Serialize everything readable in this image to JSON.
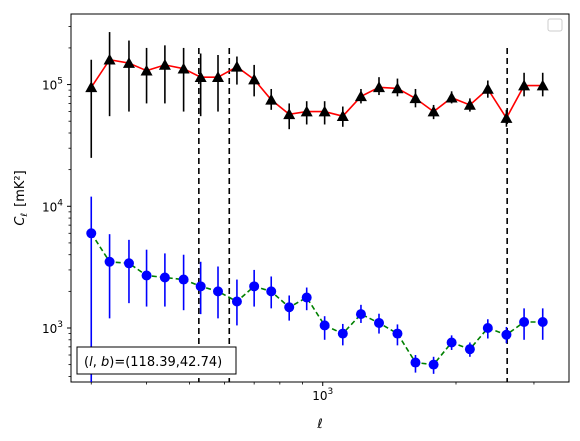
{
  "chart_data": {
    "type": "scatter",
    "title": "",
    "xlabel": "ℓ",
    "ylabel_main": "C",
    "ylabel_sub": "ℓ",
    "ylabel_unit": "[mK²]",
    "xscale": "log",
    "yscale": "log",
    "xlim": [
      270,
      3600
    ],
    "ylim": [
      360,
      380000
    ],
    "x_ticks": [
      {
        "value": 1000,
        "base": "10",
        "exp": "3"
      }
    ],
    "y_ticks": [
      {
        "value": 1000,
        "base": "10",
        "exp": "3"
      },
      {
        "value": 10000,
        "base": "10",
        "exp": "4"
      },
      {
        "value": 100000,
        "base": "10",
        "exp": "5"
      }
    ],
    "vlines": [
      525,
      615,
      2610
    ],
    "annotation": "(l, b)=(118.39,42.74)",
    "annotation_parts": {
      "l": "l",
      "b": "b",
      "values": "=(118.39,42.74)"
    },
    "legend": "top-right, empty",
    "series": [
      {
        "line_color": "#ff0000",
        "line_style": "solid",
        "marker": "triangle",
        "marker_color": "#000000",
        "errorbar_color": "#000000",
        "x": [
          300,
          330,
          365,
          400,
          440,
          485,
          530,
          580,
          640,
          700,
          765,
          840,
          920,
          1010,
          1110,
          1220,
          1340,
          1475,
          1620,
          1780,
          1955,
          2150,
          2360,
          2600,
          2850,
          3140
        ],
        "y": [
          95000,
          160000,
          150000,
          130000,
          145000,
          135000,
          115000,
          115000,
          140000,
          110000,
          75000,
          57000,
          60000,
          60000,
          55000,
          80000,
          95000,
          93000,
          77000,
          60000,
          78000,
          68000,
          92000,
          53000,
          98000,
          98000
        ],
        "ylow": [
          25000,
          55000,
          60000,
          70000,
          70000,
          60000,
          55000,
          60000,
          100000,
          80000,
          62000,
          43000,
          47000,
          47000,
          45000,
          70000,
          82000,
          80000,
          65000,
          52000,
          70000,
          60000,
          78000,
          45000,
          80000,
          80000
        ],
        "yhigh": [
          160000,
          270000,
          230000,
          200000,
          210000,
          200000,
          180000,
          175000,
          170000,
          145000,
          92000,
          70000,
          73000,
          73000,
          66000,
          92000,
          115000,
          112000,
          92000,
          68000,
          88000,
          77000,
          108000,
          62000,
          125000,
          125000
        ]
      },
      {
        "line_color": "#008000",
        "line_style": "dashed",
        "marker": "circle",
        "marker_color": "#0000ff",
        "errorbar_color": "#0000ff",
        "x": [
          300,
          330,
          365,
          400,
          440,
          485,
          530,
          580,
          640,
          700,
          765,
          840,
          920,
          1010,
          1110,
          1220,
          1340,
          1475,
          1620,
          1780,
          1955,
          2150,
          2360,
          2600,
          2850,
          3140
        ],
        "y": [
          6000,
          3500,
          3400,
          2700,
          2600,
          2500,
          2200,
          2000,
          1650,
          2200,
          2000,
          1480,
          1780,
          1050,
          900,
          1300,
          1100,
          900,
          520,
          500,
          760,
          670,
          1000,
          880,
          1120,
          1120
        ],
        "ylow": [
          360,
          1200,
          1600,
          1500,
          1500,
          1400,
          1300,
          1200,
          1050,
          1500,
          1450,
          1150,
          1400,
          800,
          720,
          1100,
          900,
          720,
          430,
          420,
          660,
          580,
          820,
          750,
          800,
          800
        ],
        "yhigh": [
          12000,
          5900,
          5300,
          4400,
          4100,
          4000,
          3500,
          3200,
          2500,
          3000,
          2650,
          1850,
          2150,
          1250,
          1080,
          1550,
          1310,
          1070,
          600,
          580,
          870,
          760,
          1180,
          1020,
          1450,
          1450
        ]
      }
    ]
  }
}
